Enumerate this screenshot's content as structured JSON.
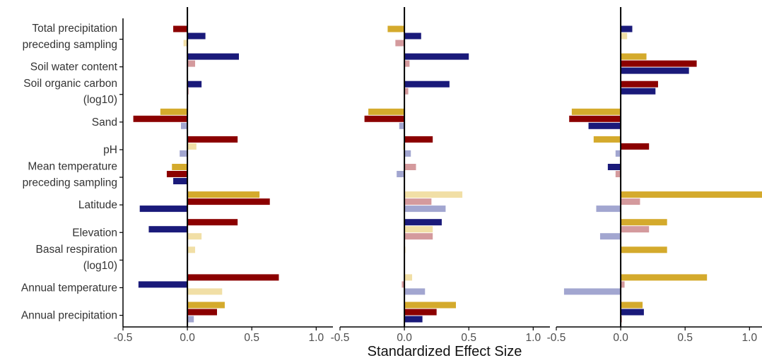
{
  "chart_data": {
    "type": "bar",
    "orientation": "horizontal",
    "xlabel": "Standardized Effect Size",
    "xlim": [
      -0.5,
      1.13
    ],
    "xticks": [
      -0.5,
      0.0,
      0.5,
      1.0
    ],
    "xtick_labels": [
      "-0.5",
      "0.0",
      "0.5",
      "1.0"
    ],
    "grid": false,
    "series_colors": [
      "#d4aa2c",
      "#8b0000",
      "#1a1a7a",
      "#f1dfa6",
      "#d49a9d",
      "#a2a6d0"
    ],
    "categories": [
      {
        "lines": [
          "Total precipitation",
          "preceding sampling"
        ]
      },
      {
        "lines": [
          "Soil water content"
        ]
      },
      {
        "lines": [
          "Soil organic carbon",
          "(log10)"
        ]
      },
      {
        "lines": [
          "Sand"
        ]
      },
      {
        "lines": [
          "pH"
        ]
      },
      {
        "lines": [
          "Mean temperature",
          "preceding sampling"
        ]
      },
      {
        "lines": [
          "Latitude"
        ]
      },
      {
        "lines": [
          "Elevation"
        ]
      },
      {
        "lines": [
          "Basal respiration",
          "(log10)"
        ]
      },
      {
        "lines": [
          "Annual temperature"
        ]
      },
      {
        "lines": [
          "Annual precipitation"
        ]
      }
    ],
    "panels": [
      {
        "values": [
          [
            null,
            -0.11,
            0.14,
            -0.03,
            null,
            null
          ],
          [
            null,
            null,
            0.4,
            null,
            0.06,
            null
          ],
          [
            null,
            null,
            0.11,
            null,
            0.01,
            null
          ],
          [
            -0.21,
            -0.42,
            null,
            null,
            null,
            -0.05
          ],
          [
            null,
            0.39,
            null,
            0.07,
            null,
            -0.06
          ],
          [
            -0.12,
            -0.16,
            -0.11,
            null,
            null,
            null
          ],
          [
            0.56,
            0.64,
            -0.37,
            null,
            null,
            null
          ],
          [
            null,
            0.39,
            -0.3,
            0.11,
            null,
            null
          ],
          [
            null,
            null,
            null,
            0.06,
            null,
            null
          ],
          [
            null,
            0.71,
            -0.38,
            0.27,
            null,
            null
          ],
          [
            0.29,
            0.23,
            null,
            null,
            null,
            0.05
          ]
        ]
      },
      {
        "values": [
          [
            -0.13,
            null,
            0.13,
            null,
            -0.07,
            null
          ],
          [
            null,
            null,
            0.5,
            null,
            0.04,
            null
          ],
          [
            null,
            null,
            0.35,
            null,
            0.03,
            null
          ],
          [
            -0.28,
            -0.31,
            null,
            null,
            null,
            -0.04
          ],
          [
            null,
            0.22,
            null,
            -0.01,
            null,
            0.05
          ],
          [
            null,
            null,
            null,
            null,
            0.09,
            -0.06
          ],
          [
            null,
            null,
            null,
            0.45,
            0.21,
            0.32
          ],
          [
            null,
            null,
            0.29,
            0.22,
            0.22,
            null
          ],
          [
            null,
            null,
            null,
            0.0,
            null,
            null
          ],
          [
            null,
            null,
            null,
            0.06,
            -0.02,
            0.16
          ],
          [
            0.4,
            0.25,
            0.14,
            null,
            null,
            null
          ]
        ]
      },
      {
        "values": [
          [
            null,
            null,
            0.09,
            0.05,
            null,
            null
          ],
          [
            0.2,
            0.59,
            0.53,
            null,
            null,
            null
          ],
          [
            null,
            0.29,
            0.27,
            null,
            null,
            null
          ],
          [
            -0.38,
            -0.4,
            -0.25,
            null,
            null,
            null
          ],
          [
            -0.21,
            0.22,
            null,
            null,
            null,
            -0.04
          ],
          [
            null,
            null,
            -0.1,
            null,
            -0.04,
            null
          ],
          [
            1.13,
            null,
            null,
            null,
            0.15,
            -0.19
          ],
          [
            0.36,
            null,
            null,
            null,
            0.22,
            -0.16
          ],
          [
            0.36,
            null,
            null,
            null,
            null,
            null
          ],
          [
            0.67,
            null,
            null,
            null,
            0.03,
            -0.44
          ],
          [
            0.17,
            null,
            0.18,
            null,
            0.01,
            null
          ]
        ]
      }
    ]
  }
}
